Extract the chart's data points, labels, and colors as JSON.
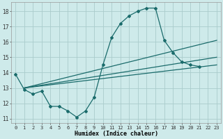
{
  "xlabel": "Humidex (Indice chaleur)",
  "background_color": "#ceeaea",
  "grid_color": "#aacccc",
  "line_color": "#1a6b6b",
  "xlim": [
    -0.5,
    23.5
  ],
  "ylim": [
    10.7,
    18.6
  ],
  "yticks": [
    11,
    12,
    13,
    14,
    15,
    16,
    17,
    18
  ],
  "xticks": [
    0,
    1,
    2,
    3,
    4,
    5,
    6,
    7,
    8,
    9,
    10,
    11,
    12,
    13,
    14,
    15,
    16,
    17,
    18,
    19,
    20,
    21,
    22,
    23
  ],
  "series0_x": [
    0,
    1,
    2,
    3,
    4,
    5,
    6,
    7,
    8,
    9,
    10,
    11,
    12,
    13,
    14,
    15,
    16,
    17,
    18,
    19,
    20,
    21
  ],
  "series0_y": [
    13.9,
    12.9,
    12.6,
    12.8,
    11.8,
    11.8,
    11.5,
    11.1,
    11.5,
    12.4,
    14.5,
    16.3,
    17.2,
    17.7,
    18.0,
    18.2,
    18.2,
    16.1,
    15.3,
    14.7,
    14.5,
    14.4
  ],
  "series1_x": [
    1,
    23
  ],
  "series1_y": [
    13.0,
    16.1
  ],
  "series2_x": [
    1,
    23
  ],
  "series2_y": [
    13.0,
    15.0
  ],
  "series3_x": [
    1,
    23
  ],
  "series3_y": [
    13.0,
    14.5
  ]
}
